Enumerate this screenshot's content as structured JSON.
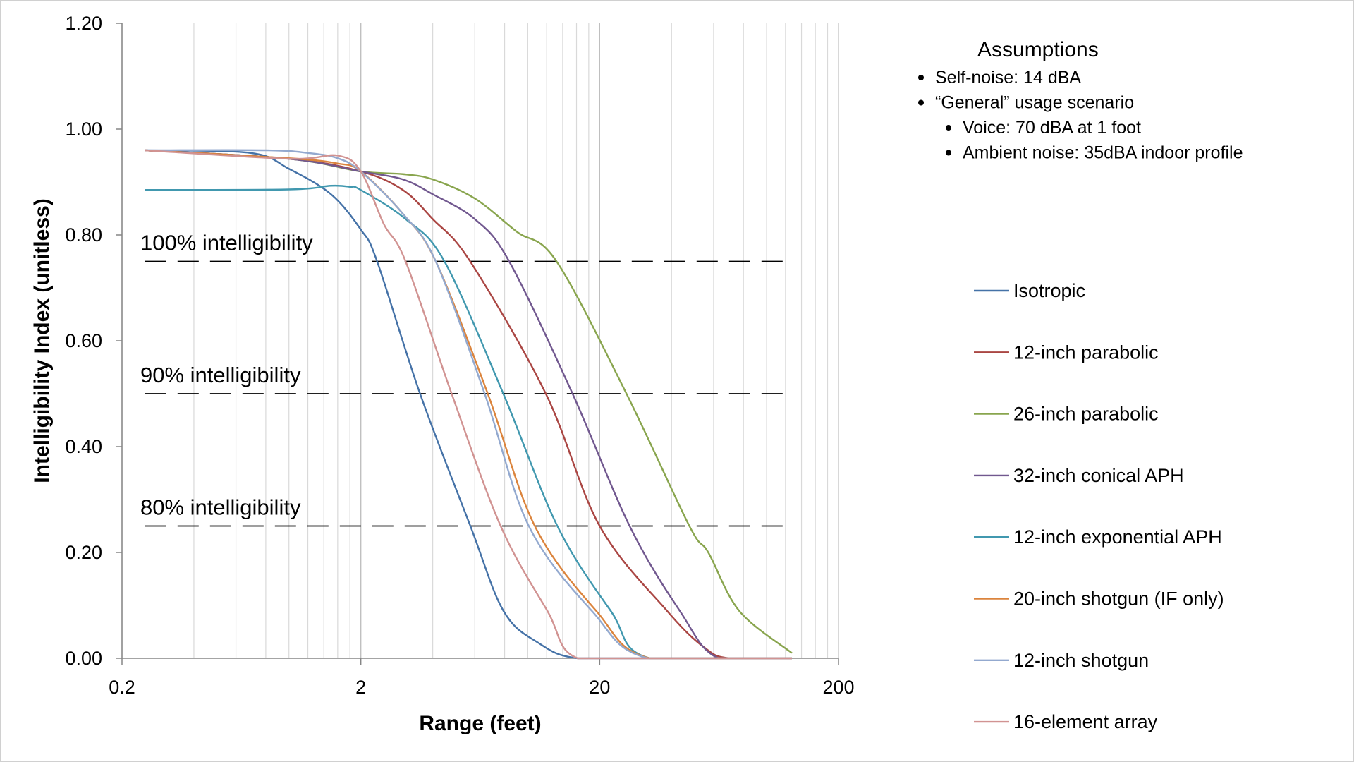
{
  "chart_data": {
    "type": "line",
    "title": "",
    "xlabel": "Range (feet)",
    "ylabel": "Intelligibility Index (unitless)",
    "x_scale": "log",
    "xlim": [
      0.2,
      200
    ],
    "ylim": [
      0,
      1.2
    ],
    "x_ticks": [
      "0.2",
      "2",
      "20",
      "200"
    ],
    "y_ticks": [
      "0.00",
      "0.20",
      "0.40",
      "0.60",
      "0.80",
      "1.00",
      "1.20"
    ],
    "grid": "vertical log gridlines on",
    "legend_position": "right",
    "reference_lines": [
      {
        "label": "100% intelligibility",
        "y": 0.75,
        "style": "dashed"
      },
      {
        "label": "90% intelligibility",
        "y": 0.5,
        "style": "dashed"
      },
      {
        "label": "80% intelligibility",
        "y": 0.25,
        "style": "dashed"
      }
    ],
    "series": [
      {
        "name": "Isotropic",
        "color": "#4572A7",
        "points": [
          [
            0.25,
            0.96
          ],
          [
            0.69,
            0.955
          ],
          [
            1.0,
            0.925
          ],
          [
            1.5,
            0.877
          ],
          [
            2.0,
            0.81
          ],
          [
            2.34,
            0.75
          ],
          [
            3.54,
            0.5
          ],
          [
            5.75,
            0.25
          ],
          [
            7.9,
            0.09
          ],
          [
            11,
            0.03
          ],
          [
            16.2,
            0.0
          ],
          [
            40,
            0.0
          ],
          [
            127.6,
            0.0
          ]
        ]
      },
      {
        "name": "12-inch parabolic",
        "color": "#AA4643",
        "points": [
          [
            0.25,
            0.96
          ],
          [
            1.0,
            0.944
          ],
          [
            2.0,
            0.92
          ],
          [
            3.0,
            0.885
          ],
          [
            4.0,
            0.83
          ],
          [
            5.74,
            0.75
          ],
          [
            11.9,
            0.5
          ],
          [
            20,
            0.25
          ],
          [
            38.4,
            0.089
          ],
          [
            55,
            0.02
          ],
          [
            70,
            0.0
          ],
          [
            127.6,
            0.0
          ]
        ]
      },
      {
        "name": "26-inch parabolic",
        "color": "#89A54E",
        "points": [
          [
            0.25,
            0.96
          ],
          [
            1.0,
            0.944
          ],
          [
            2.0,
            0.92
          ],
          [
            3.0,
            0.915
          ],
          [
            4.0,
            0.905
          ],
          [
            6.0,
            0.869
          ],
          [
            9.0,
            0.806
          ],
          [
            13.2,
            0.75
          ],
          [
            25.9,
            0.5
          ],
          [
            47.5,
            0.25
          ],
          [
            57,
            0.2
          ],
          [
            77,
            0.089
          ],
          [
            127.6,
            0.01
          ]
        ]
      },
      {
        "name": "32-inch conical APH",
        "color": "#71588F",
        "points": [
          [
            0.25,
            0.96
          ],
          [
            1.0,
            0.944
          ],
          [
            2.0,
            0.92
          ],
          [
            3.0,
            0.905
          ],
          [
            4.0,
            0.877
          ],
          [
            6.0,
            0.83
          ],
          [
            8.36,
            0.75
          ],
          [
            15.4,
            0.5
          ],
          [
            26.7,
            0.25
          ],
          [
            43.4,
            0.089
          ],
          [
            63,
            0.0
          ],
          [
            127.6,
            0.0
          ]
        ]
      },
      {
        "name": "12-inch exponential APH",
        "color": "#4198AF",
        "points": [
          [
            0.25,
            0.885
          ],
          [
            1.0,
            0.886
          ],
          [
            1.5,
            0.893
          ],
          [
            1.8,
            0.891
          ],
          [
            2.0,
            0.885
          ],
          [
            3.08,
            0.83
          ],
          [
            4.48,
            0.75
          ],
          [
            7.9,
            0.5
          ],
          [
            13.3,
            0.25
          ],
          [
            22.3,
            0.089
          ],
          [
            32.5,
            0.0
          ],
          [
            127.6,
            0.0
          ]
        ]
      },
      {
        "name": "20-inch shotgun (IF only)",
        "color": "#DB843D",
        "points": [
          [
            0.25,
            0.96
          ],
          [
            1.0,
            0.945
          ],
          [
            1.6,
            0.935
          ],
          [
            2.0,
            0.92
          ],
          [
            3.0,
            0.84
          ],
          [
            4.12,
            0.75
          ],
          [
            6.8,
            0.5
          ],
          [
            10.7,
            0.25
          ],
          [
            19.4,
            0.089
          ],
          [
            32.5,
            0.0
          ],
          [
            127.6,
            0.0
          ]
        ]
      },
      {
        "name": "12-inch shotgun",
        "color": "#93A9CF",
        "points": [
          [
            0.25,
            0.96
          ],
          [
            0.8,
            0.96
          ],
          [
            1.2,
            0.955
          ],
          [
            1.6,
            0.945
          ],
          [
            2.0,
            0.92
          ],
          [
            3.0,
            0.84
          ],
          [
            4.12,
            0.75
          ],
          [
            6.6,
            0.5
          ],
          [
            10.1,
            0.25
          ],
          [
            18.6,
            0.089
          ],
          [
            32,
            0.0
          ],
          [
            127.6,
            0.0
          ]
        ]
      },
      {
        "name": "16-element array",
        "color": "#D19392",
        "points": [
          [
            0.25,
            0.96
          ],
          [
            1.0,
            0.944
          ],
          [
            1.6,
            0.95
          ],
          [
            2.0,
            0.92
          ],
          [
            2.5,
            0.82
          ],
          [
            3.08,
            0.75
          ],
          [
            4.8,
            0.5
          ],
          [
            7.7,
            0.25
          ],
          [
            12.1,
            0.089
          ],
          [
            16.2,
            0.0
          ],
          [
            40,
            0.0
          ],
          [
            127.6,
            0.0
          ]
        ]
      }
    ]
  },
  "assumptions": {
    "title": "Assumptions",
    "items": [
      {
        "text": "Self-noise: 14 dBA",
        "level": 0
      },
      {
        "text": "“General” usage scenario",
        "level": 0
      },
      {
        "text": "Voice: 70 dBA at 1 foot",
        "level": 1
      },
      {
        "text": "Ambient noise: 35dBA indoor profile",
        "level": 1
      }
    ]
  }
}
